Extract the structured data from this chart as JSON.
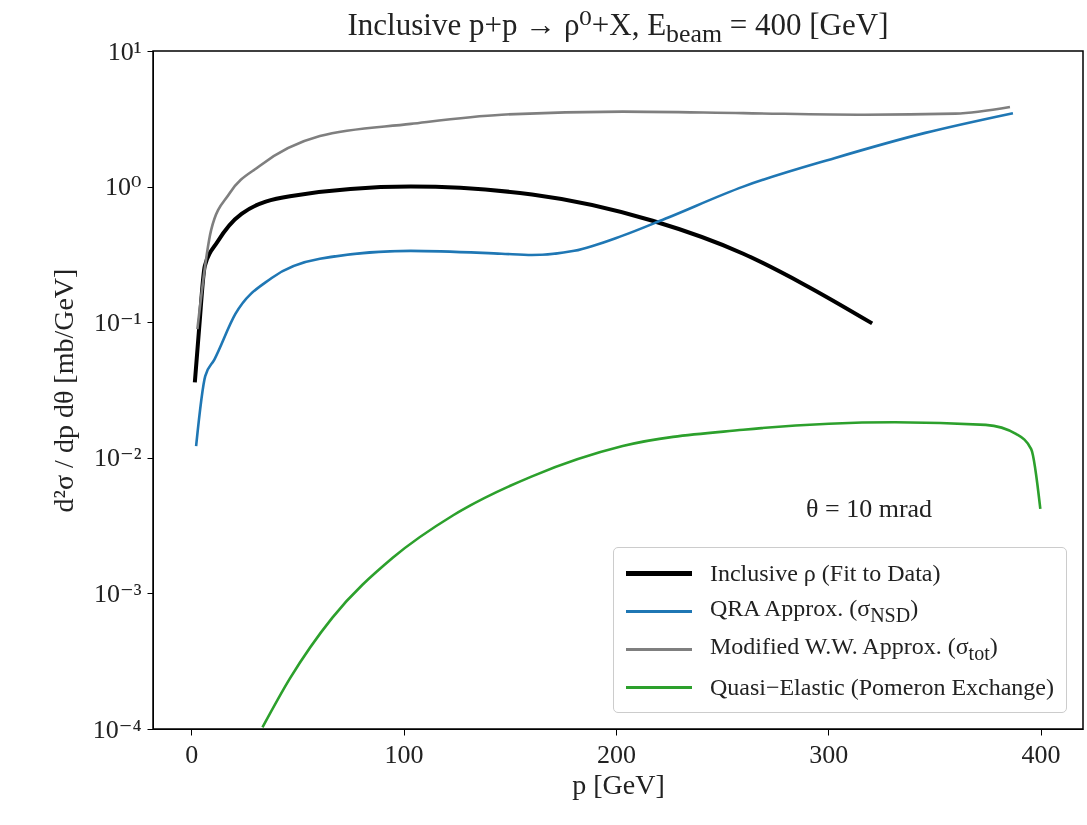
{
  "chart_data": {
    "type": "line",
    "title": "Inclusive p+p → ρ⁰+X,    E$_{beam}$ = 400 [GeV]",
    "xlabel": "p [GeV]",
    "ylabel": "d²σ / dp dθ [mb/GeV]",
    "annotations": [
      "θ = 10 mrad"
    ],
    "log": true,
    "grid": false,
    "legend": "bottom right",
    "marker": "none",
    "line_style": "solid",
    "xlim": [
      -18,
      420
    ],
    "xticks": [
      0,
      100,
      200,
      300,
      400
    ],
    "ylim": [
      0.0001,
      10
    ],
    "yticks": [
      {
        "value": 0.0001,
        "label": "10⁻⁴"
      },
      {
        "value": 0.001,
        "label": "10⁻³"
      },
      {
        "value": 0.01,
        "label": "10⁻²"
      },
      {
        "value": 0.1,
        "label": "10⁻¹"
      },
      {
        "value": 1,
        "label": "10⁰"
      },
      {
        "value": 10,
        "label": "10¹"
      }
    ],
    "series": [
      {
        "name": "Inclusive ρ (Fit to Data)",
        "color": "#000000",
        "x": [
          1.7,
          3.7,
          6.4,
          12.3,
          23.7,
          46.5,
          103.4,
          160.5,
          217.3,
          260,
          288.6,
          320.7
        ],
        "values": [
          0.036,
          0.089,
          0.26,
          0.39,
          0.63,
          0.85,
          1.0,
          0.875,
          0.56,
          0.32,
          0.19,
          0.098
        ]
      },
      {
        "name": "QRA Approx. (σ$_{NSD}$)",
        "color": "#1f77b4",
        "x": [
          2.3,
          6.6,
          10.9,
          20.8,
          37.9,
          60.6,
          103.4,
          146.2,
          160.5,
          180.4,
          203.2,
          223.2,
          260,
          302.9,
          345.7,
          387
        ],
        "values": [
          0.0122,
          0.04,
          0.053,
          0.115,
          0.212,
          0.294,
          0.336,
          0.32,
          0.313,
          0.336,
          0.435,
          0.579,
          1.0,
          1.62,
          2.49,
          3.48
        ]
      },
      {
        "name": "Modified W.W. Approx. (σ$_{tot}$)",
        "color": "#7f7f7f",
        "x": [
          2.9,
          9.4,
          18,
          32.2,
          60.6,
          103.4,
          146.2,
          203.2,
          260,
          317.2,
          359.9,
          385.6
        ],
        "values": [
          0.089,
          0.48,
          0.89,
          1.42,
          2.36,
          2.9,
          3.39,
          3.57,
          3.48,
          3.39,
          3.45,
          3.86
        ]
      },
      {
        "name": "Quasi−Elastic (Pomeron Exchange)",
        "color": "#2ca02c",
        "x": [
          33.6,
          46.5,
          66.4,
          94.9,
          123.4,
          160.5,
          203.2,
          260,
          331.4,
          374.2,
          388.4,
          395.6,
          399.9
        ],
        "values": [
          0.000103,
          0.000236,
          0.00066,
          0.00183,
          0.00377,
          0.0073,
          0.0122,
          0.0161,
          0.0183,
          0.0175,
          0.015,
          0.0116,
          0.0042
        ]
      }
    ]
  }
}
